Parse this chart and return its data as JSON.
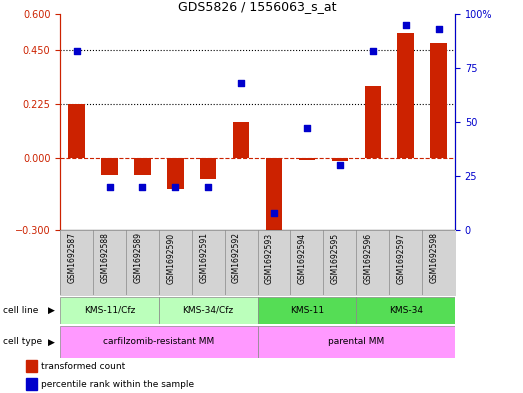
{
  "title": "GDS5826 / 1556063_s_at",
  "samples": [
    "GSM1692587",
    "GSM1692588",
    "GSM1692589",
    "GSM1692590",
    "GSM1692591",
    "GSM1692592",
    "GSM1692593",
    "GSM1692594",
    "GSM1692595",
    "GSM1692596",
    "GSM1692597",
    "GSM1692598"
  ],
  "transformed_count": [
    0.225,
    -0.07,
    -0.07,
    -0.13,
    -0.09,
    0.15,
    -0.3,
    -0.01,
    -0.015,
    0.3,
    0.52,
    0.48
  ],
  "percentile_rank": [
    83,
    20,
    20,
    20,
    20,
    68,
    8,
    47,
    30,
    83,
    95,
    93
  ],
  "ylim_left": [
    -0.3,
    0.6
  ],
  "ylim_right": [
    0,
    100
  ],
  "yticks_left": [
    -0.3,
    0.0,
    0.225,
    0.45,
    0.6
  ],
  "yticks_right": [
    0,
    25,
    50,
    75,
    100
  ],
  "hlines": [
    0.225,
    0.45
  ],
  "bar_color": "#CC2200",
  "dot_color": "#0000CC",
  "zero_line_color": "#CC2200",
  "cell_lines": [
    {
      "label": "KMS-11/Cfz",
      "start": 0,
      "end": 3,
      "color": "#BBFFBB"
    },
    {
      "label": "KMS-34/Cfz",
      "start": 3,
      "end": 6,
      "color": "#BBFFBB"
    },
    {
      "label": "KMS-11",
      "start": 6,
      "end": 9,
      "color": "#55DD55"
    },
    {
      "label": "KMS-34",
      "start": 9,
      "end": 12,
      "color": "#55DD55"
    }
  ],
  "cell_types": [
    {
      "label": "carfilzomib-resistant MM",
      "start": 0,
      "end": 6,
      "color": "#FF99FF"
    },
    {
      "label": "parental MM",
      "start": 6,
      "end": 12,
      "color": "#FF99FF"
    }
  ]
}
